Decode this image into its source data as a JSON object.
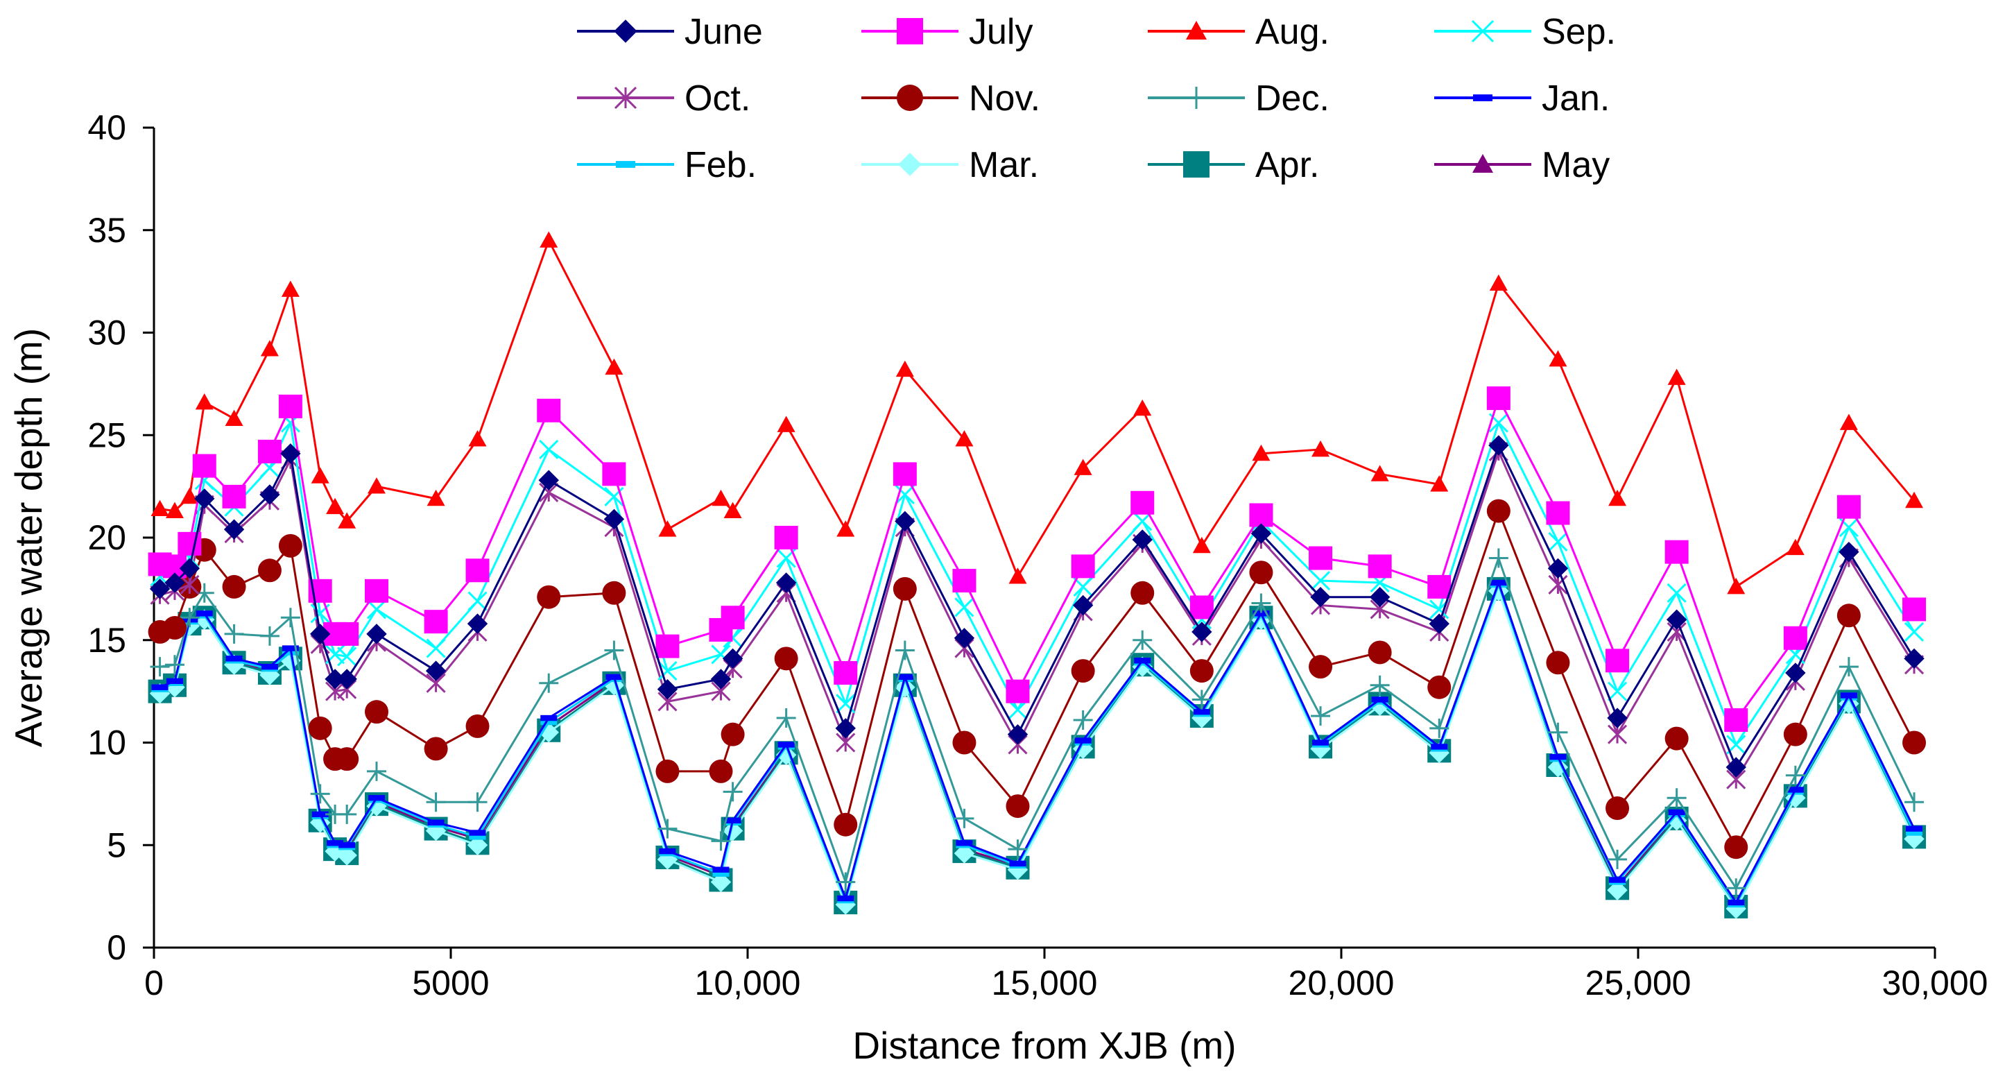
{
  "chart_data": {
    "type": "line",
    "title": "",
    "xlabel": "Distance from XJB (m)",
    "ylabel": "Average water depth (m)",
    "xlim": [
      0,
      30000
    ],
    "ylim": [
      0,
      40
    ],
    "x_ticks": [
      0,
      5000,
      10000,
      15000,
      20000,
      25000,
      30000
    ],
    "x_tick_labels": [
      "0",
      "5000",
      "10,000",
      "15,000",
      "20,000",
      "25,000",
      "30,000"
    ],
    "y_ticks": [
      0,
      5,
      10,
      15,
      20,
      25,
      30,
      35,
      40
    ],
    "y_tick_labels": [
      "0",
      "5",
      "10",
      "15",
      "20",
      "25",
      "30",
      "35",
      "40"
    ],
    "grid": false,
    "legend_position": "top",
    "x": [
      100,
      350,
      600,
      850,
      1350,
      1950,
      2300,
      2800,
      3050,
      3250,
      3750,
      4750,
      5450,
      6650,
      7750,
      8650,
      9550,
      9750,
      10650,
      11650,
      12650,
      13650,
      14550,
      15650,
      16650,
      17650,
      18650,
      19650,
      20650,
      21650,
      22650,
      23650,
      24650,
      25650,
      26650,
      27650,
      28550,
      29650
    ],
    "series": [
      {
        "name": "June",
        "color": "#000080",
        "marker": "diamond",
        "values": [
          17.5,
          17.8,
          18.5,
          21.9,
          20.4,
          22.1,
          24.1,
          15.3,
          13.1,
          13.1,
          15.3,
          13.5,
          15.8,
          22.8,
          20.9,
          12.6,
          13.1,
          14.1,
          17.8,
          10.7,
          20.8,
          15.1,
          10.4,
          16.7,
          19.9,
          15.4,
          20.2,
          17.1,
          17.1,
          15.8,
          24.5,
          18.5,
          11.2,
          16.0,
          8.8,
          13.4,
          19.3,
          14.1
        ]
      },
      {
        "name": "July",
        "color": "#ff00ff",
        "marker": "square",
        "values": [
          18.7,
          18.6,
          19.7,
          23.5,
          22.0,
          24.2,
          26.4,
          17.4,
          15.3,
          15.3,
          17.4,
          15.9,
          18.4,
          26.2,
          23.1,
          14.7,
          15.5,
          16.1,
          20.0,
          13.4,
          23.1,
          17.9,
          12.5,
          18.6,
          21.7,
          16.6,
          21.1,
          19.0,
          18.6,
          17.6,
          26.8,
          21.2,
          14.0,
          19.3,
          11.1,
          15.1,
          21.5,
          16.5
        ]
      },
      {
        "name": "Aug.",
        "color": "#ff0000",
        "marker": "triangle",
        "values": [
          21.4,
          21.3,
          22.0,
          26.6,
          25.8,
          29.2,
          32.1,
          23.0,
          21.5,
          20.8,
          22.5,
          21.9,
          24.8,
          34.5,
          28.3,
          20.4,
          21.9,
          21.3,
          25.5,
          20.4,
          28.2,
          24.8,
          18.1,
          23.4,
          26.3,
          19.6,
          24.1,
          24.3,
          23.1,
          22.6,
          32.4,
          28.7,
          21.9,
          27.8,
          17.6,
          19.5,
          25.6,
          21.8
        ]
      },
      {
        "name": "Sep.",
        "color": "#00ffff",
        "marker": "x",
        "values": [
          18.1,
          18.2,
          19.0,
          22.8,
          21.5,
          23.4,
          25.6,
          16.3,
          14.3,
          14.2,
          16.5,
          14.6,
          16.9,
          24.3,
          22.0,
          13.5,
          14.3,
          15.1,
          19.0,
          11.9,
          22.1,
          16.6,
          11.6,
          17.6,
          20.8,
          16.0,
          20.8,
          17.9,
          17.8,
          16.5,
          25.6,
          19.8,
          12.5,
          17.3,
          9.9,
          14.3,
          20.5,
          15.4
        ]
      },
      {
        "name": "Oct.",
        "color": "#993399",
        "marker": "star",
        "values": [
          17.2,
          17.4,
          17.7,
          21.6,
          20.2,
          21.8,
          23.8,
          14.8,
          12.5,
          12.6,
          14.9,
          12.9,
          15.4,
          22.2,
          20.5,
          12.0,
          12.5,
          13.6,
          17.3,
          10.0,
          20.5,
          14.6,
          9.9,
          16.4,
          19.7,
          15.2,
          19.9,
          16.7,
          16.5,
          15.4,
          24.2,
          17.7,
          10.4,
          15.4,
          8.2,
          13.0,
          19.0,
          13.8
        ]
      },
      {
        "name": "Nov.",
        "color": "#990000",
        "marker": "circle",
        "values": [
          15.4,
          15.6,
          17.6,
          19.4,
          17.6,
          18.4,
          19.6,
          10.7,
          9.2,
          9.2,
          11.5,
          9.7,
          10.8,
          17.1,
          17.3,
          8.6,
          8.6,
          10.4,
          14.1,
          6.0,
          17.5,
          10.0,
          6.9,
          13.5,
          17.3,
          13.5,
          18.3,
          13.7,
          14.4,
          12.7,
          21.3,
          13.9,
          6.8,
          10.2,
          4.9,
          10.4,
          16.2,
          10.0
        ]
      },
      {
        "name": "Dec.",
        "color": "#339999",
        "marker": "plus",
        "values": [
          13.7,
          13.8,
          16.1,
          17.3,
          15.3,
          15.2,
          16.1,
          7.5,
          6.5,
          6.5,
          8.6,
          7.1,
          7.1,
          12.9,
          14.5,
          5.8,
          5.2,
          7.6,
          11.2,
          3.2,
          14.5,
          6.3,
          4.8,
          11.1,
          15.0,
          12.1,
          16.8,
          11.3,
          12.8,
          10.7,
          19.0,
          10.5,
          4.3,
          7.3,
          2.9,
          8.4,
          13.7,
          7.1
        ]
      },
      {
        "name": "Jan.",
        "color": "#0000ff",
        "marker": "dash",
        "values": [
          12.7,
          13.0,
          16.0,
          16.3,
          14.1,
          13.7,
          14.6,
          6.5,
          5.1,
          5.0,
          7.3,
          6.1,
          5.6,
          11.2,
          13.2,
          4.7,
          3.8,
          6.2,
          9.9,
          2.4,
          13.2,
          5.1,
          4.1,
          10.1,
          14.0,
          11.5,
          16.3,
          10.0,
          12.1,
          9.8,
          17.8,
          9.3,
          3.3,
          6.6,
          2.2,
          7.7,
          12.3,
          5.8
        ]
      },
      {
        "name": "Feb.",
        "color": "#00ccff",
        "marker": "dash",
        "values": [
          12.6,
          12.9,
          15.9,
          16.2,
          14.0,
          13.6,
          14.4,
          6.4,
          5.0,
          4.9,
          7.2,
          6.0,
          5.4,
          11.0,
          13.1,
          4.6,
          3.6,
          6.1,
          9.8,
          2.3,
          13.1,
          5.0,
          4.0,
          10.0,
          13.9,
          11.4,
          16.2,
          9.9,
          12.0,
          9.7,
          17.7,
          9.2,
          3.2,
          6.5,
          2.1,
          7.6,
          12.2,
          5.6
        ]
      },
      {
        "name": "Mar.",
        "color": "#99ffff",
        "marker": "diamond",
        "values": [
          12.4,
          12.7,
          15.7,
          16.0,
          13.8,
          13.3,
          14.0,
          6.1,
          4.7,
          4.5,
          6.9,
          5.7,
          5.0,
          10.5,
          12.8,
          4.3,
          3.2,
          5.7,
          9.4,
          2.1,
          12.7,
          4.6,
          3.8,
          9.7,
          13.7,
          11.2,
          16.0,
          9.7,
          11.8,
          9.5,
          17.4,
          8.8,
          2.8,
          6.2,
          1.9,
          7.3,
          11.9,
          5.3
        ]
      },
      {
        "name": "Apr.",
        "color": "#008080",
        "marker": "square",
        "values": [
          12.5,
          12.8,
          15.8,
          16.1,
          13.9,
          13.4,
          14.1,
          6.2,
          4.8,
          4.6,
          7.0,
          5.8,
          5.1,
          10.6,
          12.9,
          4.4,
          3.3,
          5.8,
          9.5,
          2.2,
          12.8,
          4.7,
          3.9,
          9.8,
          13.8,
          11.3,
          16.1,
          9.8,
          11.9,
          9.6,
          17.5,
          8.9,
          2.9,
          6.3,
          2.0,
          7.4,
          12.0,
          5.4
        ]
      },
      {
        "name": "May",
        "color": "#800080",
        "marker": "triangle",
        "values": [
          12.6,
          12.9,
          15.9,
          16.1,
          14.0,
          13.5,
          14.2,
          6.3,
          4.9,
          4.8,
          7.1,
          5.9,
          5.3,
          10.8,
          13.0,
          4.5,
          3.5,
          5.9,
          9.6,
          2.3,
          12.9,
          4.8,
          4.0,
          9.9,
          13.9,
          11.4,
          16.2,
          9.9,
          12.0,
          9.7,
          17.6,
          9.0,
          3.0,
          6.4,
          2.1,
          7.5,
          12.1,
          5.5
        ]
      }
    ]
  }
}
